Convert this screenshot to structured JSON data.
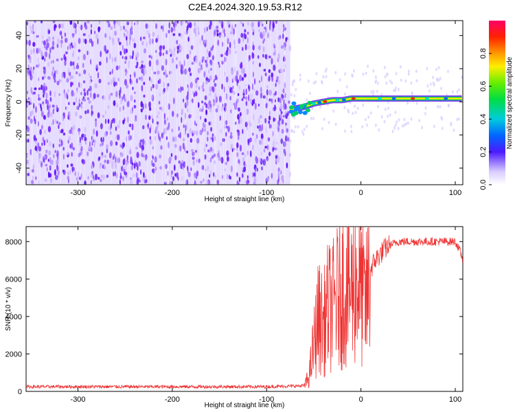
{
  "title": "C2E4.2024.320.19.53.R12",
  "chart_data": [
    {
      "type": "heatmap",
      "xlabel": "Height of straight line (km)",
      "ylabel": "Frequency (Hz)",
      "xlim": [
        -355,
        108
      ],
      "ylim": [
        -50,
        49
      ],
      "x_ticks": [
        -300,
        -200,
        -100,
        0,
        100
      ],
      "y_ticks": [
        -40,
        -20,
        0,
        20,
        40
      ],
      "noise_region_x": [
        -355,
        -75
      ],
      "signal_track": {
        "x": [
          -75,
          -70,
          -60,
          -50,
          -40,
          -30,
          -20,
          -10,
          0,
          20,
          40,
          60,
          80,
          100,
          108
        ],
        "y": [
          -5,
          -4,
          -3,
          -1,
          0,
          1,
          1,
          2,
          2,
          2,
          2,
          2,
          2,
          2,
          2
        ]
      },
      "colorbar": {
        "label": "Normalized spectral amplitude",
        "range": [
          0,
          1
        ],
        "ticks": [
          0.0,
          0.2,
          0.4,
          0.6,
          0.8
        ],
        "tick_labels": [
          "0.0",
          "0.2",
          "0.4",
          "0.6",
          "0.8"
        ]
      }
    },
    {
      "type": "line",
      "xlabel": "Height of straight line (km)",
      "ylabel": "SNR (10 * v/v)",
      "xlim": [
        -355,
        108
      ],
      "ylim": [
        0,
        8800
      ],
      "x_ticks": [
        -300,
        -200,
        -100,
        0,
        100
      ],
      "y_ticks": [
        0,
        2000,
        4000,
        6000,
        8000
      ],
      "color": "#ee3333",
      "series": [
        {
          "x": [
            -355,
            -300,
            -250,
            -200,
            -150,
            -100,
            -60,
            -55,
            -50,
            -45,
            -40,
            -35,
            -30,
            -25,
            -20,
            -15,
            -10,
            -5,
            0,
            5,
            10,
            15,
            20,
            25,
            30,
            40,
            50,
            60,
            70,
            80,
            90,
            100,
            105,
            108
          ],
          "values": [
            250,
            250,
            250,
            250,
            250,
            250,
            300,
            800,
            2500,
            4000,
            3500,
            4500,
            4500,
            5000,
            5500,
            5500,
            5500,
            6000,
            5500,
            4500,
            6500,
            7000,
            7300,
            7600,
            7800,
            8000,
            8000,
            8000,
            8000,
            8000,
            8000,
            8000,
            7500,
            7000
          ]
        }
      ]
    }
  ]
}
